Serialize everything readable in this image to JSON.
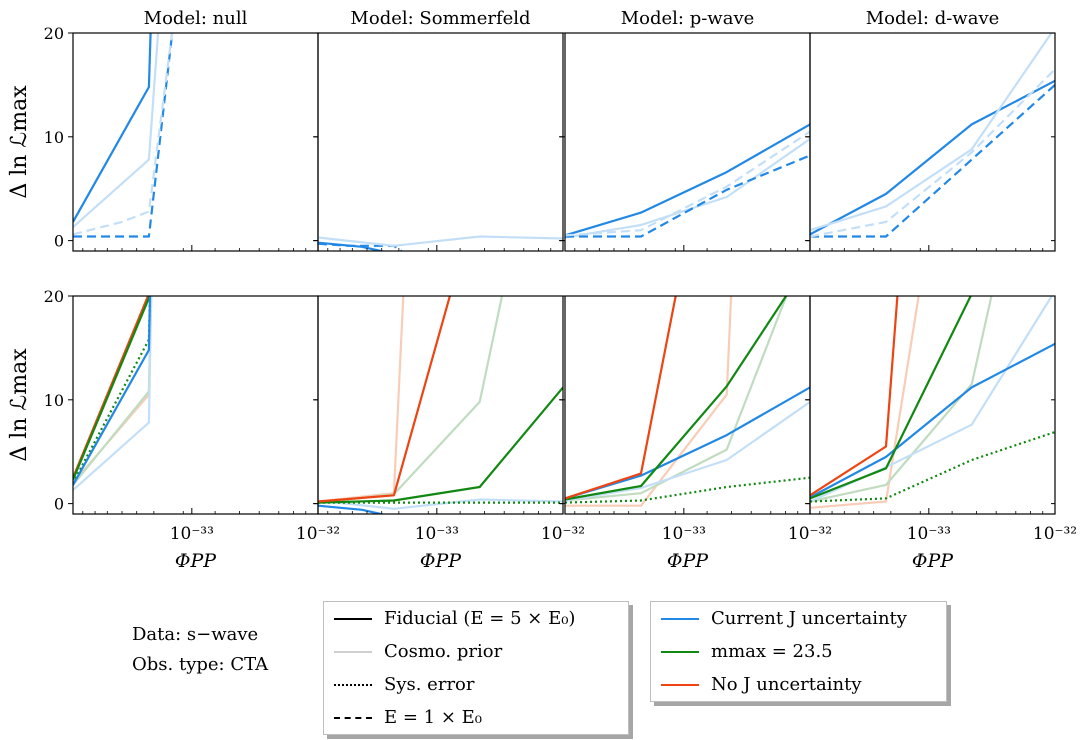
{
  "figure": {
    "colors": {
      "current": "#2288e6",
      "current_light": "#c3dff8",
      "mmax": "#118811",
      "mmax_light": "#c0dcc0",
      "noj": "#ee4411",
      "noj_light": "#f8cdb8"
    },
    "y_label": "Δ ln ℒmax",
    "x_label": "ΦPP",
    "panel_titles": [
      "Model:  null",
      "Model:  Sommerfeld",
      "Model:  p-wave",
      "Model:  d-wave"
    ],
    "x_tick_labels": {
      "panel1": [
        "10⁻³³",
        "10⁻³²"
      ],
      "panel_other": [
        "10⁻³³",
        "10⁻³²"
      ]
    },
    "y_tick_labels": [
      "0",
      "10",
      "20"
    ]
  },
  "info": {
    "data_line": "Data: s−wave",
    "obs_line": "Obs. type:  CTA"
  },
  "legend_styles": [
    {
      "label": "Fiducial (E = 5 × E₀)",
      "style": "solid"
    },
    {
      "label": "Cosmo. prior",
      "style": "light"
    },
    {
      "label": "Sys. error",
      "style": "dotted"
    },
    {
      "label": "E = 1 × E₀",
      "style": "dashed"
    }
  ],
  "legend_colors": [
    {
      "label": "Current J uncertainty",
      "color": "#2288e6"
    },
    {
      "label": "mmax = 23.5",
      "color": "#118811"
    },
    {
      "label": "No J uncertainty",
      "color": "#ee4411"
    }
  ],
  "chart_data": {
    "type": "line",
    "x_axis": {
      "label": "ΦPP",
      "scale": "log",
      "tick_labels": [
        "10⁻³³",
        "10⁻³²"
      ]
    },
    "y_axis": {
      "label": "Δ ln ℒmax",
      "ylim": [
        -1,
        20
      ],
      "ticks": [
        0,
        10,
        20
      ]
    },
    "panels": [
      {
        "row": 0,
        "model": "null",
        "series": [
          {
            "color": "current",
            "style": "solid",
            "x": [
              0.0,
              0.31,
              0.318
            ],
            "y": [
              1.8,
              14.8,
              21
            ]
          },
          {
            "color": "current",
            "style": "light",
            "x": [
              0.0,
              0.31,
              0.35
            ],
            "y": [
              1.3,
              7.8,
              21
            ]
          },
          {
            "color": "current",
            "style": "dashed",
            "x": [
              0.0,
              0.31,
              0.41
            ],
            "y": [
              0.4,
              0.4,
              21
            ]
          },
          {
            "color": "current",
            "style": "lightdashed",
            "x": [
              0.0,
              0.2,
              0.31,
              0.41
            ],
            "y": [
              0.6,
              1.8,
              2.8,
              21
            ]
          }
        ]
      },
      {
        "row": 0,
        "model": "Sommerfeld",
        "series": [
          {
            "color": "current",
            "style": "solid",
            "x": [
              0.0,
              0.18,
              0.35
            ],
            "y": [
              -0.2,
              -0.6,
              -1.5
            ]
          },
          {
            "color": "current",
            "style": "dashed",
            "x": [
              0.0,
              0.12,
              0.31,
              0.37
            ],
            "y": [
              -0.3,
              -0.5,
              -0.5,
              -1.5
            ]
          },
          {
            "color": "current",
            "style": "light",
            "x": [
              0.0,
              0.31,
              0.66,
              1.0
            ],
            "y": [
              0.3,
              -0.5,
              0.4,
              0.2
            ]
          }
        ]
      },
      {
        "row": 0,
        "model": "p-wave",
        "series": [
          {
            "color": "current",
            "style": "solid",
            "x": [
              0.0,
              0.31,
              0.66,
              1.0
            ],
            "y": [
              0.5,
              2.7,
              6.6,
              11.2
            ]
          },
          {
            "color": "current",
            "style": "light",
            "x": [
              0.0,
              0.31,
              0.66,
              1.0
            ],
            "y": [
              0.3,
              1.5,
              4.2,
              9.8
            ]
          },
          {
            "color": "current",
            "style": "dashed",
            "x": [
              0.0,
              0.31,
              0.66,
              1.0
            ],
            "y": [
              0.4,
              0.4,
              4.9,
              8.2
            ]
          },
          {
            "color": "current",
            "style": "lightdashed",
            "x": [
              0.0,
              0.31,
              0.66,
              1.0
            ],
            "y": [
              0.5,
              1.0,
              5.2,
              10.5
            ]
          }
        ]
      },
      {
        "row": 0,
        "model": "d-wave",
        "series": [
          {
            "color": "current",
            "style": "solid",
            "x": [
              0.0,
              0.31,
              0.66,
              1.0
            ],
            "y": [
              0.6,
              4.5,
              11.2,
              15.4
            ]
          },
          {
            "color": "current",
            "style": "light",
            "x": [
              0.0,
              0.31,
              0.66,
              1.0
            ],
            "y": [
              1.0,
              3.3,
              8.8,
              20.5
            ]
          },
          {
            "color": "current",
            "style": "dashed",
            "x": [
              0.0,
              0.31,
              0.66,
              1.0
            ],
            "y": [
              0.4,
              0.4,
              7.8,
              15.0
            ]
          },
          {
            "color": "current",
            "style": "lightdashed",
            "x": [
              0.0,
              0.31,
              0.66,
              1.0
            ],
            "y": [
              0.4,
              1.8,
              8.5,
              16.5
            ]
          }
        ]
      },
      {
        "row": 1,
        "model": "null",
        "series": [
          {
            "color": "noj",
            "style": "light",
            "x": [
              0.0,
              0.31,
              0.32
            ],
            "y": [
              2.0,
              10.5,
              21
            ]
          },
          {
            "color": "mmax",
            "style": "light",
            "x": [
              0.0,
              0.31,
              0.32
            ],
            "y": [
              1.8,
              10.8,
              21
            ]
          },
          {
            "color": "current",
            "style": "light",
            "x": [
              0.0,
              0.31,
              0.32
            ],
            "y": [
              1.3,
              7.8,
              21
            ]
          },
          {
            "color": "noj",
            "style": "solid",
            "x": [
              0.0,
              0.31,
              0.312
            ],
            "y": [
              2.5,
              20.2,
              21
            ]
          },
          {
            "color": "mmax",
            "style": "solid",
            "x": [
              0.0,
              0.31,
              0.312
            ],
            "y": [
              2.3,
              19.8,
              21
            ]
          },
          {
            "color": "mmax",
            "style": "dotted",
            "x": [
              0.0,
              0.31,
              0.315
            ],
            "y": [
              2.0,
              15.8,
              21
            ]
          },
          {
            "color": "current",
            "style": "solid",
            "x": [
              0.0,
              0.31,
              0.315
            ],
            "y": [
              1.8,
              14.8,
              21
            ]
          }
        ]
      },
      {
        "row": 1,
        "model": "Sommerfeld",
        "series": [
          {
            "color": "noj",
            "style": "light",
            "x": [
              0.0,
              0.31,
              0.35
            ],
            "y": [
              0.2,
              1.0,
              21
            ]
          },
          {
            "color": "mmax",
            "style": "light",
            "x": [
              0.0,
              0.31,
              0.66,
              0.76
            ],
            "y": [
              0.1,
              0.9,
              9.8,
              21
            ]
          },
          {
            "color": "current",
            "style": "light",
            "x": [
              0.0,
              0.31,
              0.66,
              1.0
            ],
            "y": [
              0.3,
              -0.5,
              0.4,
              0.2
            ]
          },
          {
            "color": "current",
            "style": "solid",
            "x": [
              0.0,
              0.18,
              0.35
            ],
            "y": [
              -0.2,
              -0.6,
              -1.5
            ]
          },
          {
            "color": "mmax",
            "style": "dotted",
            "x": [
              0.0,
              0.31,
              0.66,
              1.0
            ],
            "y": [
              0.1,
              0.1,
              0.1,
              0.1
            ]
          },
          {
            "color": "mmax",
            "style": "solid",
            "x": [
              0.0,
              0.31,
              0.66,
              1.0
            ],
            "y": [
              0.1,
              0.3,
              1.6,
              11.2
            ]
          },
          {
            "color": "noj",
            "style": "solid",
            "x": [
              0.0,
              0.31,
              0.55
            ],
            "y": [
              0.2,
              0.8,
              21
            ]
          }
        ]
      },
      {
        "row": 1,
        "model": "p-wave",
        "series": [
          {
            "color": "noj",
            "style": "light",
            "x": [
              0.0,
              0.31,
              0.66,
              0.68
            ],
            "y": [
              -0.2,
              -0.2,
              10.5,
              21
            ]
          },
          {
            "color": "mmax",
            "style": "light",
            "x": [
              0.0,
              0.31,
              0.66,
              0.92
            ],
            "y": [
              0.3,
              1.0,
              5.2,
              21
            ]
          },
          {
            "color": "current",
            "style": "light",
            "x": [
              0.0,
              0.31,
              0.66,
              1.0
            ],
            "y": [
              0.3,
              1.5,
              4.2,
              9.8
            ]
          },
          {
            "color": "current",
            "style": "solid",
            "x": [
              0.0,
              0.31,
              0.66,
              1.0
            ],
            "y": [
              0.5,
              2.7,
              6.6,
              11.2
            ]
          },
          {
            "color": "mmax",
            "style": "dotted",
            "x": [
              0.0,
              0.31,
              0.66,
              1.0
            ],
            "y": [
              0.1,
              0.3,
              1.6,
              2.5
            ]
          },
          {
            "color": "mmax",
            "style": "solid",
            "x": [
              0.0,
              0.31,
              0.66,
              0.93
            ],
            "y": [
              0.4,
              1.7,
              11.3,
              21
            ]
          },
          {
            "color": "noj",
            "style": "solid",
            "x": [
              0.0,
              0.31,
              0.46
            ],
            "y": [
              0.5,
              2.9,
              21
            ]
          }
        ]
      },
      {
        "row": 1,
        "model": "d-wave",
        "series": [
          {
            "color": "noj",
            "style": "light",
            "x": [
              0.0,
              0.31,
              0.45
            ],
            "y": [
              -0.4,
              0.2,
              21
            ]
          },
          {
            "color": "mmax",
            "style": "light",
            "x": [
              0.0,
              0.31,
              0.66,
              0.75
            ],
            "y": [
              0.2,
              1.8,
              11.5,
              21
            ]
          },
          {
            "color": "current",
            "style": "light",
            "x": [
              0.0,
              0.31,
              0.66,
              1.0
            ],
            "y": [
              0.2,
              3.5,
              7.6,
              20.5
            ]
          },
          {
            "color": "current",
            "style": "solid",
            "x": [
              0.0,
              0.31,
              0.66,
              1.0
            ],
            "y": [
              0.6,
              4.5,
              11.2,
              15.4
            ]
          },
          {
            "color": "mmax",
            "style": "dotted",
            "x": [
              0.0,
              0.31,
              0.66,
              1.0
            ],
            "y": [
              0.2,
              0.5,
              4.2,
              6.9
            ]
          },
          {
            "color": "mmax",
            "style": "solid",
            "x": [
              0.0,
              0.31,
              0.66
            ],
            "y": [
              0.5,
              3.4,
              20.2
            ]
          },
          {
            "color": "noj",
            "style": "solid",
            "x": [
              0.0,
              0.31,
              0.36
            ],
            "y": [
              0.8,
              5.5,
              21
            ]
          }
        ]
      }
    ]
  }
}
